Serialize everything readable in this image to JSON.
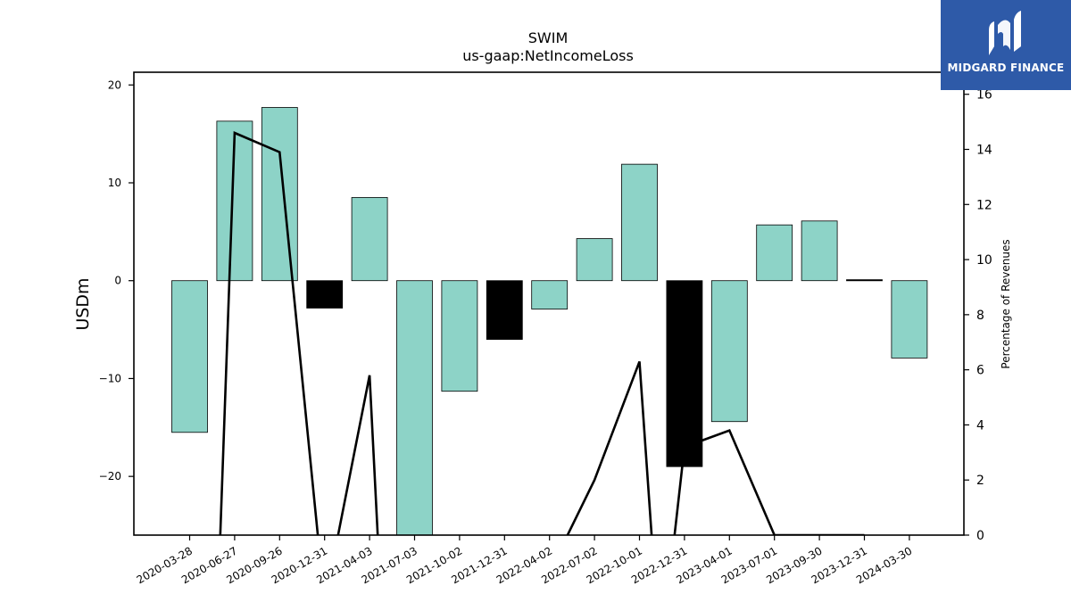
{
  "chart_data": {
    "type": "bar",
    "title": "SWIM",
    "subtitle": "us-gaap:NetIncomeLoss",
    "ylabel": "USDm",
    "y2label": "Percentage of Revenues",
    "categories": [
      "2020-03-28",
      "2020-06-27",
      "2020-09-26",
      "2020-12-31",
      "2021-04-03",
      "2021-07-03",
      "2021-10-02",
      "2021-12-31",
      "2022-04-02",
      "2022-07-02",
      "2022-10-01",
      "2022-12-31",
      "2023-04-01",
      "2023-07-01",
      "2023-09-30",
      "2023-12-31",
      "2024-03-30"
    ],
    "series": [
      {
        "type": "bar",
        "values": [
          -15.5,
          16.3,
          17.7,
          -2.8,
          8.5,
          -27.0,
          -11.3,
          -6.0,
          -2.9,
          4.3,
          11.9,
          -19.0,
          -14.4,
          5.7,
          6.1,
          0.1,
          -7.9
        ],
        "colors": [
          "#8dd3c7",
          "#8dd3c7",
          "#8dd3c7",
          "#000000",
          "#8dd3c7",
          "#8dd3c7",
          "#8dd3c7",
          "#000000",
          "#8dd3c7",
          "#8dd3c7",
          "#8dd3c7",
          "#000000",
          "#8dd3c7",
          "#8dd3c7",
          "#8dd3c7",
          "#000000",
          "#8dd3c7"
        ]
      },
      {
        "type": "line",
        "axis": "right",
        "x": [
          0.68,
          1.0,
          2.0,
          2.85,
          3.3,
          4.0,
          4.18,
          8.4,
          9.0,
          10.0,
          10.27,
          10.78,
          11.0,
          12.0,
          13.0,
          15.0
        ],
        "values": [
          0,
          14.6,
          13.9,
          0,
          0,
          5.8,
          0,
          0,
          2.0,
          6.3,
          0,
          0,
          3.2,
          3.8,
          0,
          0
        ],
        "break_after": [
          3,
          6,
          10
        ]
      }
    ],
    "ylim": [
      -26,
      21.3
    ],
    "yticks": [
      -20,
      -10,
      0,
      10,
      20
    ],
    "y2lim": [
      0,
      16.8
    ],
    "y2ticks": [
      0,
      2,
      4,
      6,
      8,
      10,
      12,
      14,
      16
    ],
    "grid": false
  },
  "logo": {
    "text": "MIDGARD FINANCE"
  },
  "colors": {
    "positive_bar": "#8dd3c7",
    "negative_bar": "#000000",
    "line": "#000000",
    "logo_bg": "#2e5aa8"
  }
}
